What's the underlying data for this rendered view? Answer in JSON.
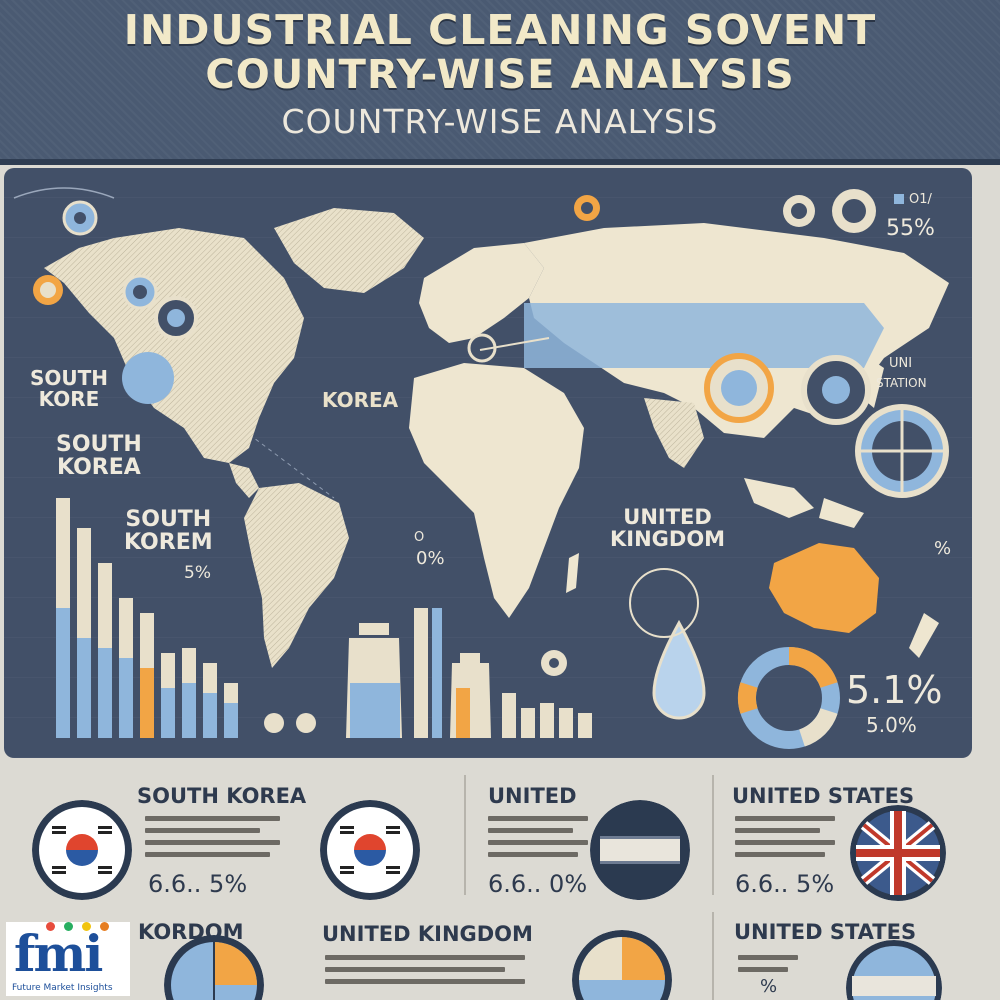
{
  "header": {
    "line1": "INDUSTRIAL CLEANING SOVENT",
    "line2": "COUNTRY-WISE ANALYSIS",
    "line3": "COUNTRY-WISE ANALYSIS"
  },
  "map": {
    "labels": {
      "south_korea_1": "SOUTH\nKORE",
      "south_korea_2": "SOUTH\nKOREA",
      "south_korea_3": "SOUTH\nKOREM",
      "korea": "KOREA",
      "united_kingdom": "UNITED\nKINGDOM",
      "unit": "UNI",
      "station": "STATION"
    },
    "values": {
      "top_right_pct": "55%",
      "top_right_small": "O1/",
      "left_pct": "5%",
      "center_pct": "0%",
      "center_small": "O",
      "right_pct": "%",
      "donut_big": "5.1%",
      "donut_small": "5.0%"
    }
  },
  "colors": {
    "header_bg": "#4a5a72",
    "panel_bg": "#425068",
    "land": "#eee6d0",
    "accent_blue": "#7fb0df",
    "accent_orange": "#f0a24a",
    "text_dark": "#2e3a4e"
  },
  "cards": [
    {
      "title": "SOUTH KOREA",
      "value": "6.6.. 5%",
      "flag_icon": "south-korea-flag-icon"
    },
    {
      "title": "UNITED",
      "value": "6.6.. 0%",
      "flag_icon": "striped-flag-icon"
    },
    {
      "title": "UNITED STATES",
      "value": "6.6.. 5%",
      "flag_icon": "union-jack-flag-icon"
    },
    {
      "title": "KORDOM",
      "value": "",
      "flag_icon": "pie-chart-icon"
    },
    {
      "title": "UNITED KINGDOM",
      "value": "",
      "flag_icon": "pie-chart-icon"
    },
    {
      "title": "UNITED STATES",
      "value": "%",
      "flag_icon": "blue-flag-icon"
    }
  ],
  "logo": {
    "word": "fmi",
    "subtitle": "Future Market Insights"
  }
}
